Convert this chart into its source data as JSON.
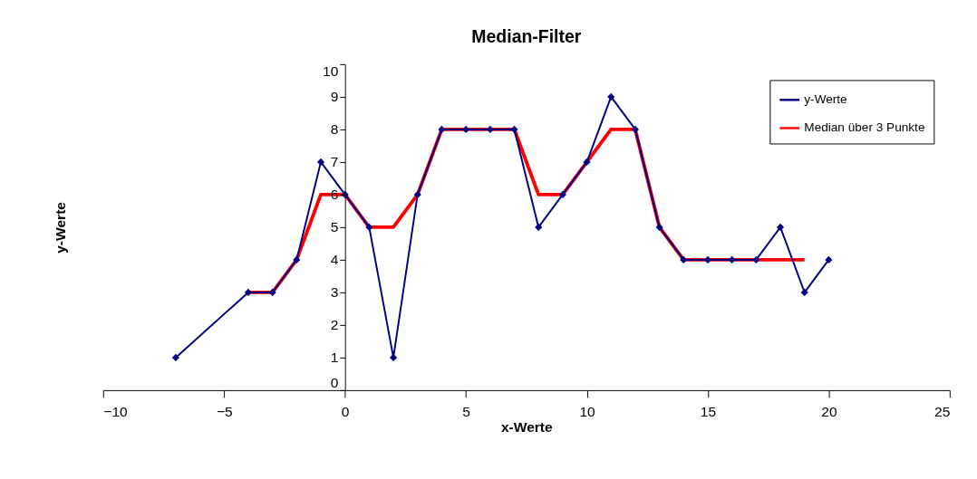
{
  "chart_data": {
    "type": "line",
    "title": "Median-Filter",
    "xlabel": "x-Werte",
    "ylabel": "y-Werte",
    "xlim": [
      -10,
      25
    ],
    "xticks": [
      -10,
      -5,
      0,
      5,
      10,
      15,
      20,
      25
    ],
    "ylim": [
      0,
      10
    ],
    "yticks": [
      0,
      1,
      2,
      3,
      4,
      5,
      6,
      7,
      8,
      9,
      10
    ],
    "grid": false,
    "legend": "top right",
    "line_style": "solid",
    "series": [
      {
        "name": "y-Werte",
        "color": "#000080",
        "marker": "diamond",
        "x": [
          -7,
          -4,
          -3,
          -2,
          -1,
          0,
          1,
          2,
          3,
          4,
          5,
          6,
          7,
          8,
          9,
          10,
          11,
          12,
          13,
          14,
          15,
          16,
          17,
          18,
          19,
          20
        ],
        "values": [
          1,
          3,
          3,
          4,
          7,
          6,
          5,
          1,
          6,
          8,
          8,
          8,
          8,
          5,
          6,
          7,
          9,
          8,
          5,
          4,
          4,
          4,
          4,
          5,
          3,
          4
        ]
      },
      {
        "name": "Median über 3 Punkte",
        "color": "#ff0000",
        "marker": "none",
        "x": [
          -4,
          -3,
          -2,
          -1,
          0,
          1,
          2,
          3,
          4,
          5,
          6,
          7,
          8,
          9,
          10,
          11,
          12,
          13,
          14,
          15,
          16,
          17,
          18,
          19
        ],
        "values": [
          3,
          3,
          4,
          6,
          6,
          5,
          5,
          6,
          8,
          8,
          8,
          8,
          6,
          6,
          7,
          8,
          8,
          5,
          4,
          4,
          4,
          4,
          4,
          4
        ]
      }
    ]
  }
}
